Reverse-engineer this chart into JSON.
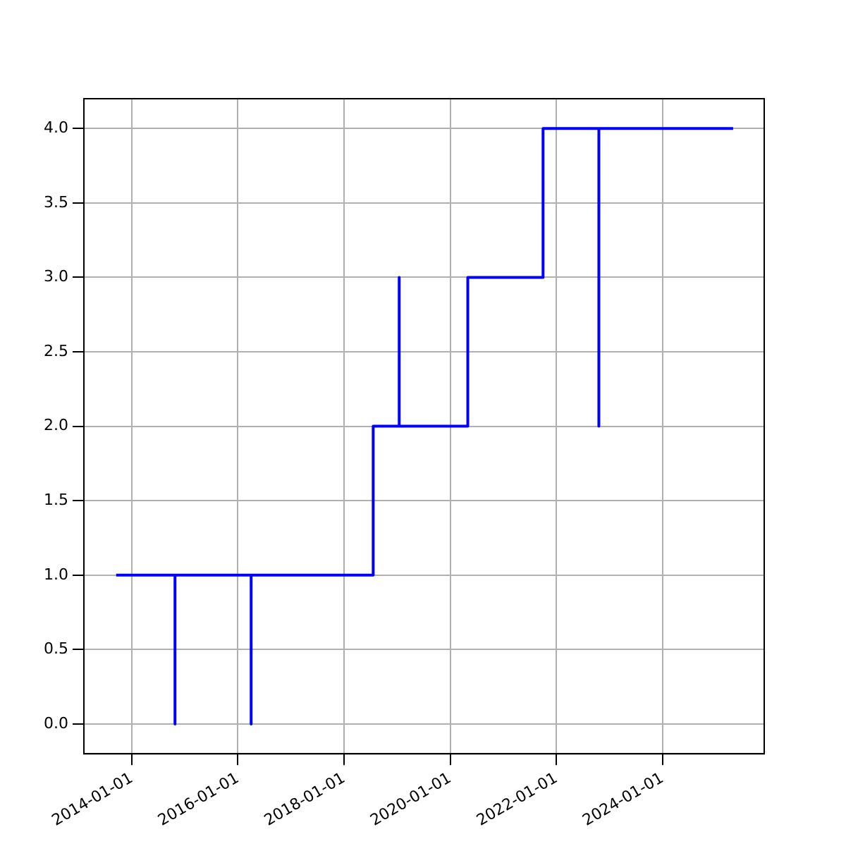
{
  "chart_data": {
    "type": "step",
    "x": [
      "2013-09-15",
      "2014-10-25",
      "2014-10-25",
      "2016-04-01",
      "2016-04-01",
      "2018-07-20",
      "2019-01-15",
      "2019-01-15",
      "2020-05-01",
      "2021-10-01",
      "2022-10-20",
      "2022-10-20",
      "2025-05-01"
    ],
    "series": [
      {
        "color": "#0000ff",
        "values": [
          1,
          0,
          1,
          0,
          1,
          2,
          3,
          2,
          3,
          4,
          2,
          4,
          4
        ]
      }
    ],
    "xlim": [
      "2013-02-05",
      "2025-12-01"
    ],
    "xticks": [
      "2014-01-01",
      "2016-01-01",
      "2018-01-01",
      "2020-01-01",
      "2022-01-01",
      "2024-01-01"
    ],
    "ylim": [
      -0.2,
      4.2
    ],
    "yticks": [
      {
        "value": 0,
        "label": "0.0"
      },
      {
        "value": 0.5,
        "label": "0.5"
      },
      {
        "value": 1,
        "label": "1.0"
      },
      {
        "value": 1.5,
        "label": "1.5"
      },
      {
        "value": 2,
        "label": "2.0"
      },
      {
        "value": 2.5,
        "label": "2.5"
      },
      {
        "value": 3,
        "label": "3.0"
      },
      {
        "value": 3.5,
        "label": "3.5"
      },
      {
        "value": 4,
        "label": "4.0"
      }
    ],
    "grid": true,
    "legend": false
  }
}
